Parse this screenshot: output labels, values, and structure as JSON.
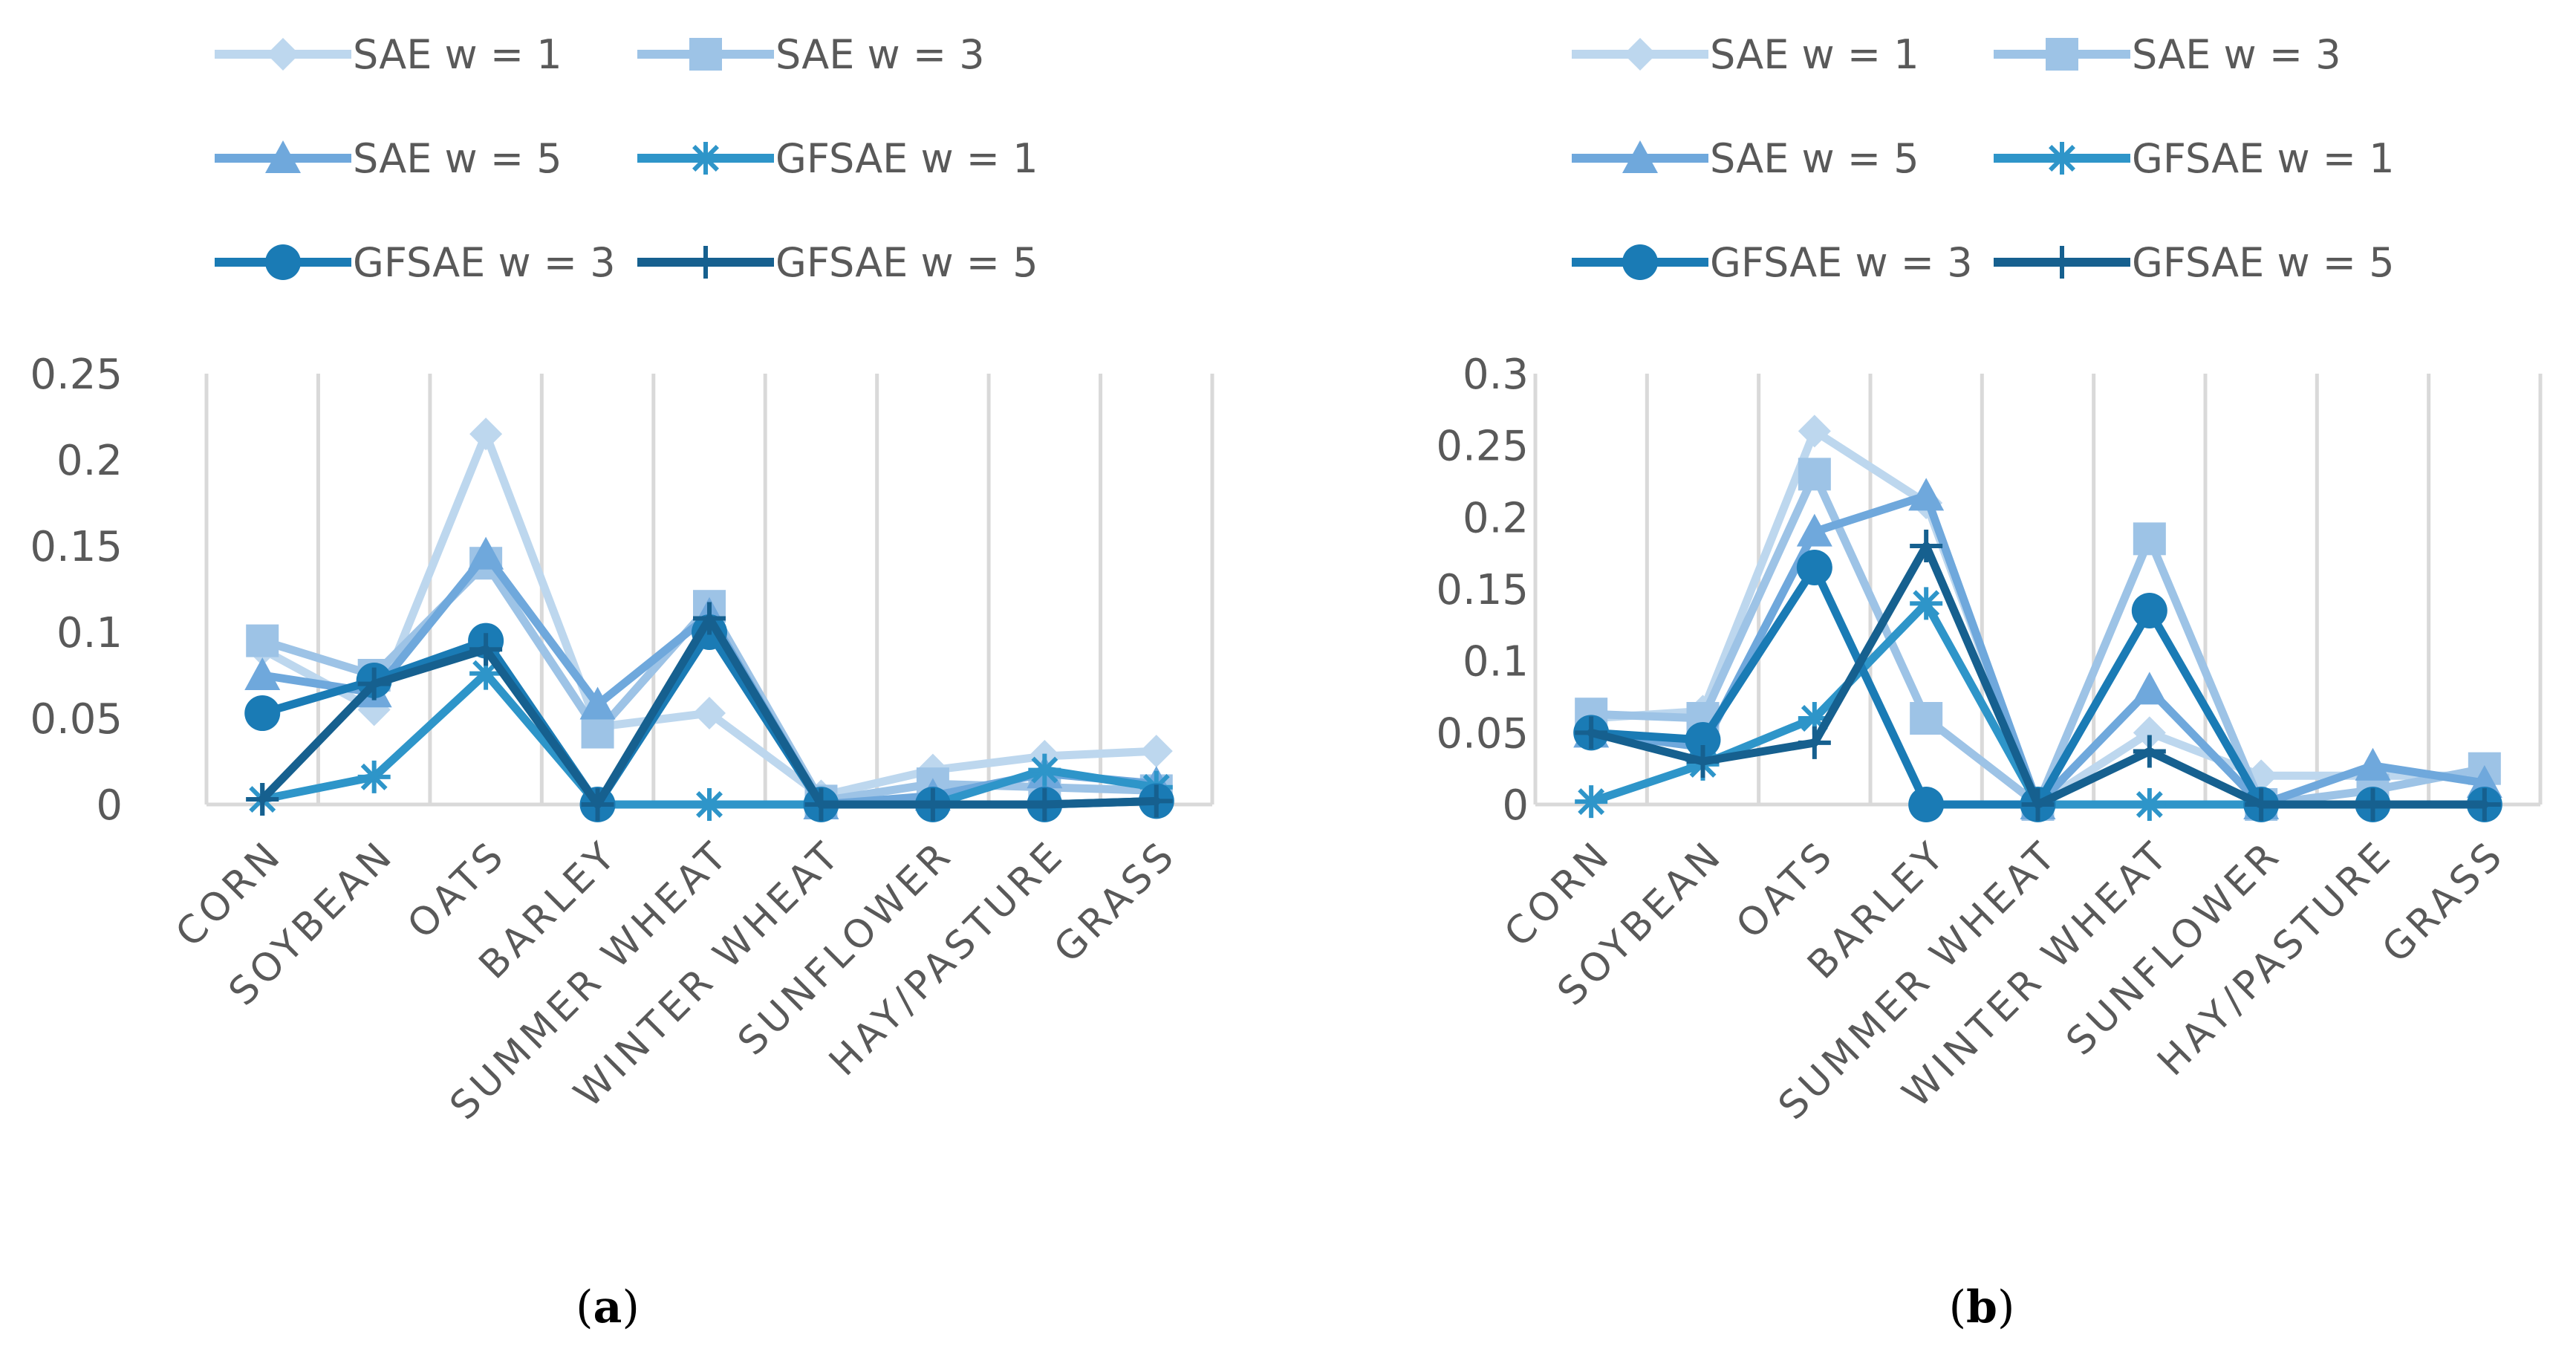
{
  "chart_data": [
    {
      "type": "line",
      "caption_letter": "a",
      "categories": [
        "CORN",
        "SOYBEAN",
        "OATS",
        "BARLEY",
        "SUMMER WHEAT",
        "WINTER WHEAT",
        "SUNFLOWER",
        "HAY/PASTURE",
        "GRASS"
      ],
      "ylim": [
        0,
        0.25
      ],
      "yticks": [
        0,
        0.05,
        0.1,
        0.15,
        0.2,
        0.25
      ],
      "ytick_labels": [
        "0",
        "0.05",
        "0.1",
        "0.15",
        "0.2",
        "0.25"
      ],
      "grid": "vertical",
      "legend_position": "top",
      "series": [
        {
          "name": "SAE w = 1",
          "color": "#bdd7ee",
          "marker": "diamond",
          "values": [
            0.09,
            0.055,
            0.215,
            0.045,
            0.053,
            0.005,
            0.02,
            0.028,
            0.031
          ]
        },
        {
          "name": "SAE w = 3",
          "color": "#9dc3e6",
          "marker": "square",
          "values": [
            0.095,
            0.075,
            0.14,
            0.042,
            0.115,
            0.002,
            0.012,
            0.01,
            0.008
          ]
        },
        {
          "name": "SAE w = 5",
          "color": "#6fa8dc",
          "marker": "triangle",
          "values": [
            0.075,
            0.065,
            0.145,
            0.058,
            0.11,
            0.0,
            0.005,
            0.018,
            0.012
          ]
        },
        {
          "name": "GFSAE w = 1",
          "color": "#2e95c9",
          "marker": "asterisk",
          "values": [
            0.003,
            0.016,
            0.076,
            0.0,
            0.0,
            0.0,
            0.0,
            0.02,
            0.01
          ]
        },
        {
          "name": "GFSAE w = 3",
          "color": "#1a7bb5",
          "marker": "circle",
          "values": [
            0.053,
            0.072,
            0.095,
            0.0,
            0.1,
            0.0,
            0.0,
            0.0,
            0.002
          ]
        },
        {
          "name": "GFSAE w = 5",
          "color": "#16608f",
          "marker": "plus",
          "values": [
            0.003,
            0.07,
            0.09,
            0.0,
            0.108,
            0.0,
            0.0,
            0.0,
            0.002
          ]
        }
      ]
    },
    {
      "type": "line",
      "caption_letter": "b",
      "categories": [
        "CORN",
        "SOYBEAN",
        "OATS",
        "BARLEY",
        "SUMMER WHEAT",
        "WINTER WHEAT",
        "SUNFLOWER",
        "HAY/PASTURE",
        "GRASS"
      ],
      "ylim": [
        0,
        0.3
      ],
      "yticks": [
        0,
        0.05,
        0.1,
        0.15,
        0.2,
        0.25,
        0.3
      ],
      "ytick_labels": [
        "0",
        "0.05",
        "0.1",
        "0.15",
        "0.2",
        "0.25",
        "0.3"
      ],
      "grid": "vertical",
      "legend_position": "top",
      "series": [
        {
          "name": "SAE w = 1",
          "color": "#bdd7ee",
          "marker": "diamond",
          "values": [
            0.06,
            0.065,
            0.26,
            0.21,
            0.0,
            0.05,
            0.02,
            0.02,
            0.02
          ]
        },
        {
          "name": "SAE w = 3",
          "color": "#9dc3e6",
          "marker": "square",
          "values": [
            0.063,
            0.06,
            0.23,
            0.06,
            0.0,
            0.185,
            0.0,
            0.01,
            0.025
          ]
        },
        {
          "name": "SAE w = 5",
          "color": "#6fa8dc",
          "marker": "triangle",
          "values": [
            0.05,
            0.04,
            0.19,
            0.215,
            0.0,
            0.08,
            0.0,
            0.027,
            0.015
          ]
        },
        {
          "name": "GFSAE w = 1",
          "color": "#2e95c9",
          "marker": "asterisk",
          "values": [
            0.002,
            0.028,
            0.06,
            0.14,
            0.0,
            0.0,
            0.0,
            0.0,
            0.0
          ]
        },
        {
          "name": "GFSAE w = 3",
          "color": "#1a7bb5",
          "marker": "circle",
          "values": [
            0.05,
            0.045,
            0.165,
            0.0,
            0.0,
            0.135,
            0.0,
            0.0,
            0.0
          ]
        },
        {
          "name": "GFSAE w = 5",
          "color": "#16608f",
          "marker": "plus",
          "values": [
            0.05,
            0.03,
            0.043,
            0.18,
            0.0,
            0.037,
            0.0,
            0.0,
            0.0
          ]
        }
      ]
    }
  ]
}
